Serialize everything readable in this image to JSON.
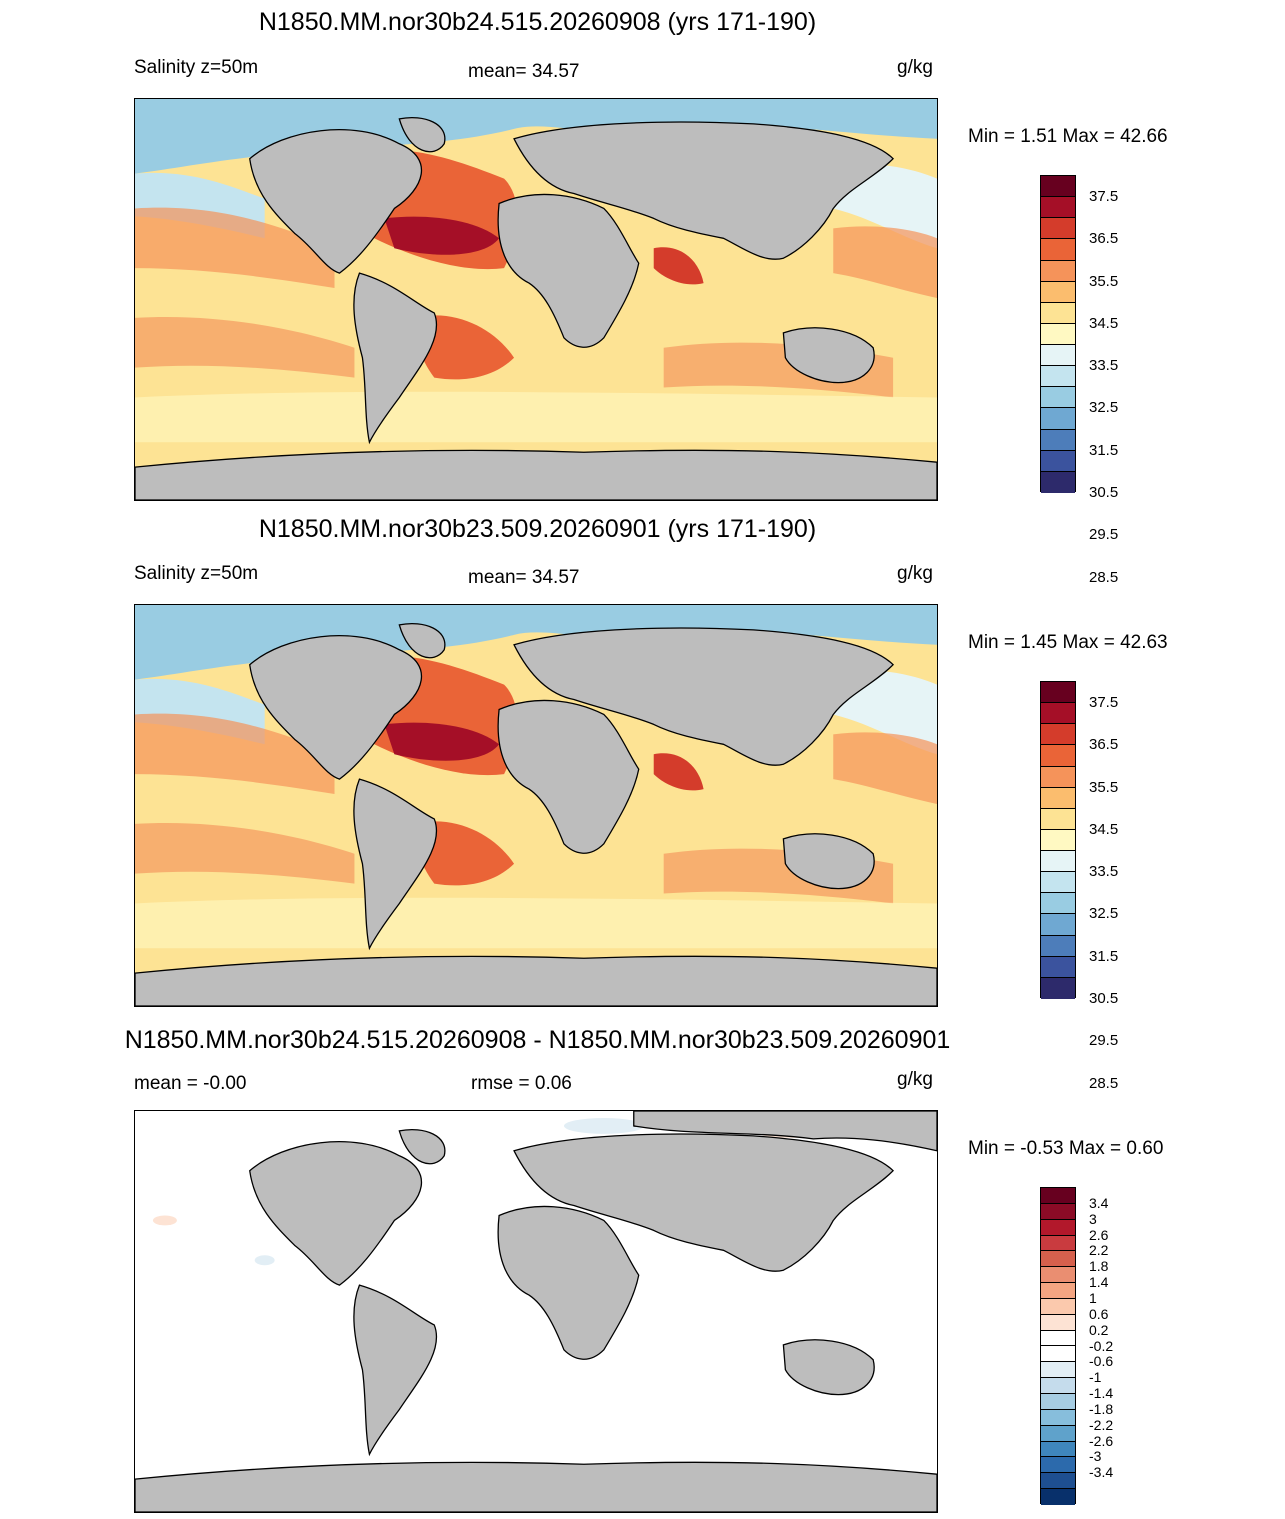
{
  "panels": [
    {
      "title": "N1850.MM.nor30b24.515.20260908 (yrs 171-190)",
      "left_label": "Salinity z=50m",
      "center_label": "mean=  34.57",
      "units": "g/kg",
      "min_max": "Min =   1.51 Max =  42.66",
      "kind": "field"
    },
    {
      "title": "N1850.MM.nor30b23.509.20260901 (yrs 171-190)",
      "left_label": "Salinity z=50m",
      "center_label": "mean=  34.57",
      "units": "g/kg",
      "min_max": "Min =   1.45 Max =  42.63",
      "kind": "field"
    },
    {
      "title": "N1850.MM.nor30b24.515.20260908 - N1850.MM.nor30b23.509.20260901",
      "left_label": "mean =  -0.00",
      "center_label": "rmse =   0.06",
      "units": "g/kg",
      "min_max": "Min =  -0.53 Max =   0.60",
      "kind": "diff"
    }
  ],
  "colorbars": {
    "field": {
      "colors": [
        "#67001f",
        "#a50f27",
        "#d43c2b",
        "#ea6437",
        "#f5935a",
        "#fbbd6e",
        "#fde394",
        "#fff9c2",
        "#e6f4f6",
        "#c4e4ef",
        "#99cce2",
        "#6fa8d2",
        "#4d7dba",
        "#3b539e",
        "#2d2a6b"
      ],
      "labels": [
        "37.5",
        "36.5",
        "35.5",
        "34.5",
        "33.5",
        "32.5",
        "31.5",
        "30.5",
        "29.5",
        "28.5"
      ]
    },
    "diff": {
      "colors": [
        "#67001f",
        "#8b0b26",
        "#b2182b",
        "#c93b3f",
        "#d6604d",
        "#ea8e71",
        "#f4a582",
        "#fbc9ad",
        "#fde3d4",
        "#ffffff",
        "#ffffff",
        "#e2eef5",
        "#c5dcec",
        "#a6cde3",
        "#87bedc",
        "#5fa2cb",
        "#3f86bc",
        "#2c6aac",
        "#1e4f91",
        "#08306b"
      ],
      "labels": [
        "3.4",
        "3",
        "2.6",
        "2.2",
        "1.8",
        "1.4",
        "1",
        "0.6",
        "0.2",
        "-0.2",
        "-0.6",
        "-1",
        "-1.4",
        "-1.8",
        "-2.2",
        "-2.6",
        "-3",
        "-3.4"
      ]
    }
  }
}
